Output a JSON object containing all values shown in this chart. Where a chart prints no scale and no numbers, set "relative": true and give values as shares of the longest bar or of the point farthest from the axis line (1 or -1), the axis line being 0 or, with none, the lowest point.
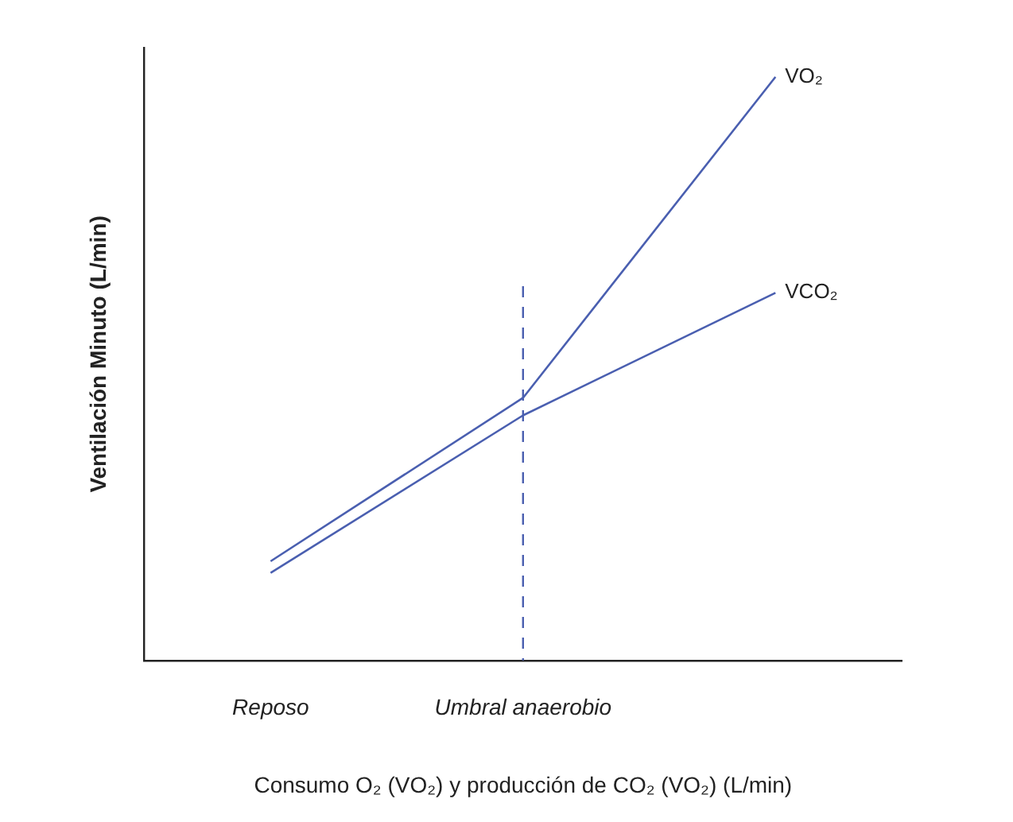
{
  "chart_data": {
    "type": "line",
    "relative": true,
    "xlabel": "Consumo O₂ (VO₂) y producción de CO₂ (VO₂) (L/min)",
    "ylabel": "Ventilación Minuto (L/min)",
    "categories": [
      "Reposo",
      "Umbral anaerobio",
      null
    ],
    "series": [
      {
        "name": "VO₂",
        "color": "#4a5fb0",
        "values": [
          0.17,
          0.45,
          1
        ]
      },
      {
        "name": "VCO₂",
        "color": "#4a5fb0",
        "values": [
          0.15,
          0.42,
          0.63
        ]
      }
    ],
    "ref_lines": [
      {
        "axis": "x",
        "value": "Umbral anaerobio",
        "color": "#4a5fb0",
        "line_style": "dashed"
      }
    ],
    "grid": false,
    "legend": false,
    "marker": "none",
    "line_style": "solid"
  }
}
